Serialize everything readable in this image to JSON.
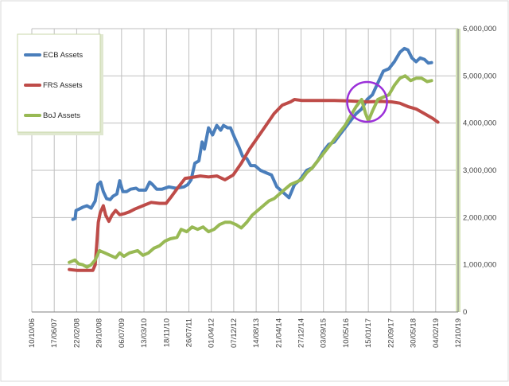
{
  "chart_data": {
    "type": "line",
    "title": "",
    "xlabel": "",
    "ylabel": "",
    "ylim": [
      0,
      6000000
    ],
    "xlim": [
      "2006-10-10",
      "2019-10-12"
    ],
    "y_axis_side": "right",
    "y_ticks": [
      "0",
      "1,000,000",
      "2,000,000",
      "3,000,000",
      "4,000,000",
      "5,000,000",
      "6,000,000"
    ],
    "x_ticks": [
      "10/10/06",
      "17/06/07",
      "22/02/08",
      "29/10/08",
      "06/07/09",
      "13/03/10",
      "18/11/10",
      "26/07/11",
      "01/04/12",
      "07/12/12",
      "14/08/13",
      "21/04/14",
      "27/12/14",
      "03/09/15",
      "10/05/16",
      "15/01/17",
      "22/09/17",
      "30/05/18",
      "04/02/19",
      "12/10/19"
    ],
    "grid": true,
    "legend_position": "top-left",
    "series": [
      {
        "name": "ECB Assets",
        "color": "#4a7ebb",
        "points": [
          [
            "2008-01-10",
            1960000
          ],
          [
            "2008-02-05",
            1980000
          ],
          [
            "2008-02-15",
            2150000
          ],
          [
            "2008-03-20",
            2180000
          ],
          [
            "2008-05-01",
            2220000
          ],
          [
            "2008-06-15",
            2250000
          ],
          [
            "2008-08-01",
            2200000
          ],
          [
            "2008-09-15",
            2350000
          ],
          [
            "2008-10-15",
            2700000
          ],
          [
            "2008-11-15",
            2750000
          ],
          [
            "2008-12-15",
            2550000
          ],
          [
            "2009-01-20",
            2400000
          ],
          [
            "2009-03-01",
            2380000
          ],
          [
            "2009-04-01",
            2450000
          ],
          [
            "2009-05-15",
            2500000
          ],
          [
            "2009-06-15",
            2780000
          ],
          [
            "2009-07-20",
            2550000
          ],
          [
            "2009-09-01",
            2550000
          ],
          [
            "2009-10-15",
            2600000
          ],
          [
            "2009-12-15",
            2620000
          ],
          [
            "2010-01-15",
            2580000
          ],
          [
            "2010-04-01",
            2580000
          ],
          [
            "2010-05-15",
            2750000
          ],
          [
            "2010-06-15",
            2700000
          ],
          [
            "2010-08-01",
            2600000
          ],
          [
            "2010-10-01",
            2600000
          ],
          [
            "2010-12-15",
            2650000
          ],
          [
            "2011-03-01",
            2620000
          ],
          [
            "2011-06-01",
            2650000
          ],
          [
            "2011-07-15",
            2700000
          ],
          [
            "2011-08-20",
            2800000
          ],
          [
            "2011-10-01",
            3150000
          ],
          [
            "2011-11-15",
            3200000
          ],
          [
            "2011-12-20",
            3600000
          ],
          [
            "2012-01-15",
            3450000
          ],
          [
            "2012-03-01",
            3900000
          ],
          [
            "2012-04-15",
            3750000
          ],
          [
            "2012-06-01",
            3950000
          ],
          [
            "2012-07-15",
            3850000
          ],
          [
            "2012-08-15",
            3950000
          ],
          [
            "2012-10-01",
            3900000
          ],
          [
            "2012-11-01",
            3900000
          ],
          [
            "2012-12-15",
            3700000
          ],
          [
            "2013-02-01",
            3500000
          ],
          [
            "2013-03-15",
            3300000
          ],
          [
            "2013-05-01",
            3250000
          ],
          [
            "2013-06-15",
            3100000
          ],
          [
            "2013-08-01",
            3100000
          ],
          [
            "2013-10-01",
            3000000
          ],
          [
            "2013-12-01",
            2950000
          ],
          [
            "2014-02-01",
            2900000
          ],
          [
            "2014-04-01",
            2650000
          ],
          [
            "2014-06-01",
            2550000
          ],
          [
            "2014-08-15",
            2420000
          ],
          [
            "2014-10-15",
            2700000
          ],
          [
            "2014-12-15",
            2800000
          ],
          [
            "2015-03-01",
            3000000
          ],
          [
            "2015-05-01",
            3050000
          ],
          [
            "2015-07-01",
            3200000
          ],
          [
            "2015-09-01",
            3400000
          ],
          [
            "2015-11-01",
            3550000
          ],
          [
            "2016-01-01",
            3600000
          ],
          [
            "2016-03-01",
            3750000
          ],
          [
            "2016-05-01",
            3900000
          ],
          [
            "2016-07-01",
            4050000
          ],
          [
            "2016-09-01",
            4200000
          ],
          [
            "2016-11-01",
            4300000
          ],
          [
            "2017-01-01",
            4500000
          ],
          [
            "2017-03-01",
            4600000
          ],
          [
            "2017-05-01",
            4850000
          ],
          [
            "2017-07-01",
            5100000
          ],
          [
            "2017-09-01",
            5150000
          ],
          [
            "2017-11-01",
            5300000
          ],
          [
            "2018-01-01",
            5500000
          ],
          [
            "2018-02-20",
            5580000
          ],
          [
            "2018-04-01",
            5550000
          ],
          [
            "2018-05-15",
            5380000
          ],
          [
            "2018-07-01",
            5300000
          ],
          [
            "2018-08-15",
            5380000
          ],
          [
            "2018-10-01",
            5350000
          ],
          [
            "2018-11-15",
            5270000
          ],
          [
            "2018-12-20",
            5280000
          ]
        ]
      },
      {
        "name": "FRS Assets",
        "color": "#be4b48",
        "points": [
          [
            "2007-12-01",
            900000
          ],
          [
            "2008-03-01",
            880000
          ],
          [
            "2008-06-01",
            880000
          ],
          [
            "2008-08-20",
            880000
          ],
          [
            "2008-09-15",
            1000000
          ],
          [
            "2008-10-01",
            1400000
          ],
          [
            "2008-10-20",
            1900000
          ],
          [
            "2008-11-10",
            2100000
          ],
          [
            "2008-12-15",
            2250000
          ],
          [
            "2009-01-10",
            2050000
          ],
          [
            "2009-02-15",
            1920000
          ],
          [
            "2009-03-20",
            2050000
          ],
          [
            "2009-05-01",
            2150000
          ],
          [
            "2009-06-15",
            2060000
          ],
          [
            "2009-08-01",
            2080000
          ],
          [
            "2009-10-01",
            2120000
          ],
          [
            "2009-12-01",
            2180000
          ],
          [
            "2010-03-01",
            2250000
          ],
          [
            "2010-06-01",
            2320000
          ],
          [
            "2010-09-01",
            2300000
          ],
          [
            "2010-11-15",
            2300000
          ],
          [
            "2011-01-15",
            2450000
          ],
          [
            "2011-04-01",
            2650000
          ],
          [
            "2011-06-15",
            2830000
          ],
          [
            "2011-09-01",
            2850000
          ],
          [
            "2011-12-01",
            2880000
          ],
          [
            "2012-03-01",
            2860000
          ],
          [
            "2012-06-01",
            2880000
          ],
          [
            "2012-09-01",
            2800000
          ],
          [
            "2012-12-01",
            2900000
          ],
          [
            "2013-03-01",
            3150000
          ],
          [
            "2013-06-01",
            3450000
          ],
          [
            "2013-09-01",
            3700000
          ],
          [
            "2013-12-01",
            3950000
          ],
          [
            "2014-03-01",
            4200000
          ],
          [
            "2014-06-01",
            4380000
          ],
          [
            "2014-09-01",
            4450000
          ],
          [
            "2014-10-15",
            4500000
          ],
          [
            "2015-01-01",
            4480000
          ],
          [
            "2015-06-01",
            4480000
          ],
          [
            "2016-01-01",
            4480000
          ],
          [
            "2016-06-01",
            4470000
          ],
          [
            "2017-01-01",
            4450000
          ],
          [
            "2017-06-01",
            4460000
          ],
          [
            "2017-10-01",
            4450000
          ],
          [
            "2018-01-01",
            4420000
          ],
          [
            "2018-04-01",
            4350000
          ],
          [
            "2018-07-01",
            4300000
          ],
          [
            "2018-10-01",
            4200000
          ],
          [
            "2019-01-01",
            4100000
          ],
          [
            "2019-03-01",
            4020000
          ]
        ]
      },
      {
        "name": "BoJ Assets",
        "color": "#98b954",
        "points": [
          [
            "2007-12-01",
            1050000
          ],
          [
            "2008-02-01",
            1100000
          ],
          [
            "2008-03-15",
            1020000
          ],
          [
            "2008-05-01",
            1000000
          ],
          [
            "2008-06-15",
            950000
          ],
          [
            "2008-08-01",
            1000000
          ],
          [
            "2008-09-15",
            1100000
          ],
          [
            "2008-11-01",
            1300000
          ],
          [
            "2009-01-01",
            1250000
          ],
          [
            "2009-03-01",
            1200000
          ],
          [
            "2009-05-01",
            1150000
          ],
          [
            "2009-06-15",
            1250000
          ],
          [
            "2009-08-01",
            1180000
          ],
          [
            "2009-10-01",
            1250000
          ],
          [
            "2010-01-01",
            1300000
          ],
          [
            "2010-03-01",
            1200000
          ],
          [
            "2010-05-01",
            1250000
          ],
          [
            "2010-07-01",
            1350000
          ],
          [
            "2010-09-01",
            1400000
          ],
          [
            "2010-11-01",
            1500000
          ],
          [
            "2011-01-01",
            1550000
          ],
          [
            "2011-03-15",
            1580000
          ],
          [
            "2011-05-01",
            1750000
          ],
          [
            "2011-07-01",
            1700000
          ],
          [
            "2011-09-01",
            1800000
          ],
          [
            "2011-11-01",
            1750000
          ],
          [
            "2012-01-01",
            1800000
          ],
          [
            "2012-03-01",
            1700000
          ],
          [
            "2012-05-01",
            1750000
          ],
          [
            "2012-07-01",
            1850000
          ],
          [
            "2012-09-01",
            1900000
          ],
          [
            "2012-11-01",
            1900000
          ],
          [
            "2013-01-01",
            1850000
          ],
          [
            "2013-03-01",
            1780000
          ],
          [
            "2013-05-01",
            1900000
          ],
          [
            "2013-07-01",
            2050000
          ],
          [
            "2013-09-01",
            2150000
          ],
          [
            "2013-11-01",
            2250000
          ],
          [
            "2014-01-01",
            2350000
          ],
          [
            "2014-03-01",
            2400000
          ],
          [
            "2014-05-01",
            2500000
          ],
          [
            "2014-07-01",
            2600000
          ],
          [
            "2014-09-01",
            2700000
          ],
          [
            "2014-11-01",
            2750000
          ],
          [
            "2015-01-01",
            2800000
          ],
          [
            "2015-03-01",
            2950000
          ],
          [
            "2015-05-01",
            3050000
          ],
          [
            "2015-07-01",
            3200000
          ],
          [
            "2015-09-01",
            3350000
          ],
          [
            "2015-11-01",
            3500000
          ],
          [
            "2016-01-01",
            3650000
          ],
          [
            "2016-03-01",
            3800000
          ],
          [
            "2016-05-01",
            3950000
          ],
          [
            "2016-07-01",
            4150000
          ],
          [
            "2016-09-01",
            4350000
          ],
          [
            "2016-11-01",
            4500000
          ],
          [
            "2016-12-15",
            4200000
          ],
          [
            "2017-01-15",
            4050000
          ],
          [
            "2017-03-01",
            4250000
          ],
          [
            "2017-05-01",
            4500000
          ],
          [
            "2017-07-01",
            4550000
          ],
          [
            "2017-09-01",
            4600000
          ],
          [
            "2017-11-01",
            4800000
          ],
          [
            "2018-01-01",
            4950000
          ],
          [
            "2018-03-01",
            5000000
          ],
          [
            "2018-05-01",
            4900000
          ],
          [
            "2018-07-01",
            4950000
          ],
          [
            "2018-09-01",
            4950000
          ],
          [
            "2018-11-01",
            4880000
          ],
          [
            "2018-12-20",
            4900000
          ]
        ]
      }
    ],
    "annotations": [
      {
        "type": "circle",
        "center": [
          "2017-01-01",
          4450000
        ],
        "color": "#9b30d9"
      }
    ]
  }
}
